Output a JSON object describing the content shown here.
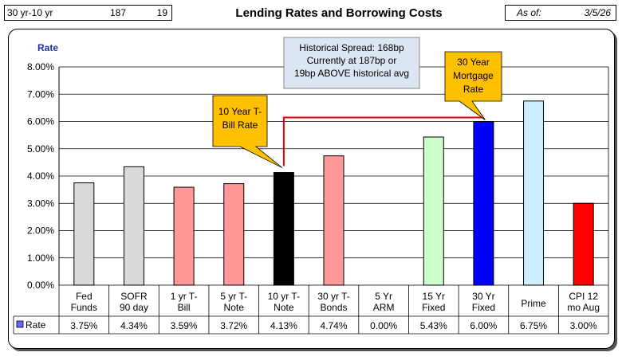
{
  "header": {
    "label": "30 yr-10 yr",
    "spread_value": "187",
    "diff_value": "19",
    "title": "Lending Rates and Borrowing Costs",
    "asof_label": "As of:",
    "asof_date": "3/5/26"
  },
  "chart_data": {
    "type": "bar",
    "title": "Lending Rates and Borrowing Costs",
    "ylabel": "Rate",
    "ylim": [
      0,
      8
    ],
    "yticks": [
      "0.00%",
      "1.00%",
      "2.00%",
      "3.00%",
      "4.00%",
      "5.00%",
      "6.00%",
      "7.00%",
      "8.00%"
    ],
    "categories": [
      [
        "Fed",
        "Funds"
      ],
      [
        "SOFR",
        "90 day"
      ],
      [
        "1 yr  T-",
        "Bill"
      ],
      [
        "5 yr T-",
        "Note"
      ],
      [
        "10 yr T-",
        "Note"
      ],
      [
        "30 yr T-",
        "Bonds"
      ],
      [
        "5 Yr",
        "ARM"
      ],
      [
        "15 Yr",
        "Fixed"
      ],
      [
        "30 Yr",
        "Fixed"
      ],
      [
        "Prime"
      ],
      [
        "CPI 12",
        "mo Aug"
      ]
    ],
    "series": [
      {
        "name": "Rate",
        "values": [
          3.75,
          4.34,
          3.59,
          3.72,
          4.13,
          4.74,
          0.0,
          5.43,
          6.0,
          6.75,
          3.0
        ],
        "labels": [
          "3.75%",
          "4.34%",
          "3.59%",
          "3.72%",
          "4.13%",
          "4.74%",
          "0.00%",
          "5.43%",
          "6.00%",
          "6.75%",
          "3.00%"
        ],
        "colors": [
          "#d9d9d9",
          "#d9d9d9",
          "#ff9999",
          "#ff9999",
          "#000000",
          "#ff9999",
          "#ff9999",
          "#ccffcc",
          "#0000ff",
          "#cceeff",
          "#ff0000"
        ]
      }
    ],
    "legend_color": "#6666ff",
    "grid": true,
    "annotations": [
      {
        "lines": [
          "Historical Spread: 168bp",
          "Currently at 187bp  or",
          "19bp ABOVE historical avg"
        ],
        "fill": "#dce6f2"
      },
      {
        "lines": [
          "10 Year T-",
          "Bill Rate"
        ],
        "fill": "#ffc000"
      },
      {
        "lines": [
          "30 Year",
          "Mortgage",
          "Rate"
        ],
        "fill": "#ffc000"
      }
    ]
  }
}
